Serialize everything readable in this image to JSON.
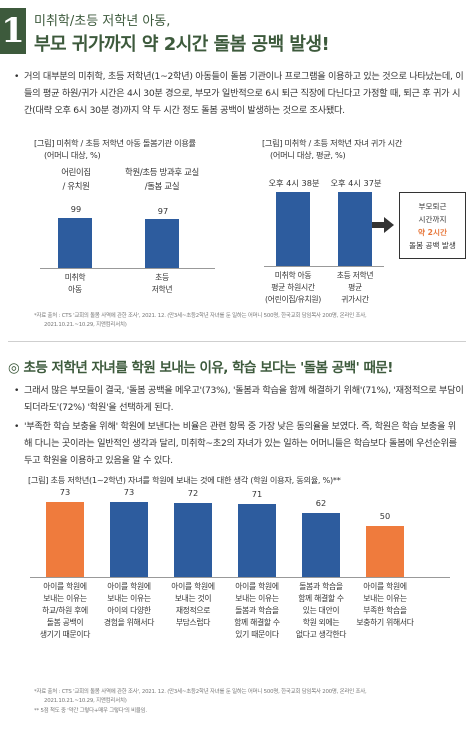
{
  "header": {
    "number": "1",
    "subtitle": "미취학/초등 저학년 아동,",
    "title": "부모 귀가까지 약 2시간 돌봄 공백 발생!"
  },
  "intro": {
    "text": "거의 대부분의 미취학, 초등 저학년(1~2학년) 아동들이 돌봄 기관이나 프로그램을 이용하고 있는 것으로 나타났는데, 이들의 평균 하원/귀가 시간은 4시 30분 경으로, 부모가 일반적으로 6시 퇴근 직장에 다닌다고 가정할 때, 퇴근 후 귀가 시간(대략 오후 6시 30분 경)까지 약 두 시간 정도 돌봄 공백이 발생하는 것으로 조사됐다."
  },
  "chart1": {
    "caption_line1": "[그림] 미취학 / 초등 저학년 아동 돌봄기관 이용률",
    "caption_line2": "(어머니 대상, %)",
    "col1_head_line1": "어린이집",
    "col1_head_line2": "/ 유치원",
    "col2_head_line1": "학원/초등 방과후 교실",
    "col2_head_line2": "/돌봄 교실",
    "chart_data": {
      "type": "bar",
      "categories": [
        "미취학 아동",
        "초등 저학년"
      ],
      "values": [
        99,
        97
      ],
      "ylim": [
        0,
        100
      ],
      "color": "#2d5c9e"
    },
    "cat1_line1": "미취학",
    "cat1_line2": "아동",
    "cat2_line1": "초등",
    "cat2_line2": "저학년",
    "val1": "99",
    "val2": "97"
  },
  "chart2": {
    "caption_line1": "[그림] 미취학 / 초등 저학년 자녀 귀가 시간",
    "caption_line2": "(어머니 대상, 평균, %)",
    "chart_data": {
      "type": "bar",
      "categories": [
        "미취학 아동 평균 하원시간",
        "초등 저학년 평균 귀가시간"
      ],
      "values": [
        "오후 4시 38분",
        "오후 4시 37분"
      ],
      "color": "#2d5c9e"
    },
    "val1": "오후 4시 38분",
    "val2": "오후 4시 37분",
    "cat1_line1": "미취학 아동",
    "cat1_line2": "평균 하원시간",
    "cat1_line3": "(어린이집/유치원)",
    "cat2_line1": "초등 저학년",
    "cat2_line2": "평균",
    "cat2_line3": "귀가시간",
    "callout_line1": "부모퇴근",
    "callout_line2": "시간까지",
    "callout_line3": "약 2시간",
    "callout_line4": "돌봄 공백 발생"
  },
  "source1": {
    "line1": "*자료 출처 : CTS '교회의 돌봄 사역에 관한 조사', 2021. 12. (만3세~초등2학년 자녀를 둔 일하는 어머니 500명, 한국교회 담임목사 200명, 온라인 조사,",
    "line2": "2021.10.21.~10.29, 지앤컴리서치)"
  },
  "section2": {
    "title": "◎ 초등 저학년 자녀를 학원 보내는 이유, 학습 보다는 '돌봄 공백' 때문!",
    "bullet1": "그래서 많은 부모들이 결국, '돌봄 공백을 메우고'(73%), '돌봄과 학습을 함께 해결하기 위해'(71%), '재정적으로 부담이 되더라도'(72%) '학원'을 선택하게 된다.",
    "bullet2": "'부족한 학습 보충을 위해' 학원에 보낸다는 비율은 관련 항목 중 가장 낮은 동의율을 보였다. 즉, 학원은 학습 보충을 위해 다니는 곳이라는 일반적인 생각과 달리, 미취학~초2의 자녀가 있는 일하는 어머니들은 학습보다 돌봄에 우선순위를 두고 학원을 이용하고 있음을 알 수 있다."
  },
  "chart3": {
    "caption": "[그림] 초등 저학년(1~2학년) 자녀를 학원에 보내는 것에 대한 생각 (학원 이용자, 동의율, %)**",
    "chart_data": {
      "type": "bar",
      "categories": [
        "아이를 학원에 보내는 이유는 하교/하원 후에 돌봄 공백이 생기기 때문이다",
        "아이를 학원에 보내는 이유는 아이의 다양한 경험을 위해서다",
        "아이를 학원에 보내는 것이 재정적으로 부담스럽다",
        "아이를 학원에 보내는 이유는 돌봄과 학습을 함께 해결할 수 있기 때문이다",
        "돌봄과 학습을 함께 해결할 수 있는 대안이 학원 외에는 없다고 생각한다",
        "아이를 학원에 보내는 이유는 부족한 학습을 보충하기 위해서다"
      ],
      "values": [
        73,
        73,
        72,
        71,
        62,
        50
      ],
      "colors": [
        "#ef7b3d",
        "#2d5c9e",
        "#2d5c9e",
        "#2d5c9e",
        "#2d5c9e",
        "#ef7b3d"
      ],
      "ylim": [
        0,
        80
      ]
    },
    "labels": [
      [
        "아이를 학원에",
        "보내는 이유는",
        "하교/하원 후에",
        "돌봄 공백이",
        "생기기 때문이다"
      ],
      [
        "아이를 학원에",
        "보내는 이유는",
        "아이의 다양한",
        "경험을 위해서다"
      ],
      [
        "아이를 학원에",
        "보내는 것이",
        "재정적으로",
        "부담스럽다"
      ],
      [
        "아이를 학원에",
        "보내는 이유는",
        "돌봄과 학습을",
        "함께 해결할 수",
        "있기 때문이다"
      ],
      [
        "돌봄과 학습을",
        "함께 해결할 수",
        "있는 대안이",
        "학원 외에는",
        "없다고 생각한다"
      ],
      [
        "아이를 학원에",
        "보내는 이유는",
        "부족한 학습을",
        "보충하기 위해서다"
      ]
    ]
  },
  "source2": {
    "line1": "*자료 출처 : CTS '교회의 돌봄 사역에 관한 조사', 2021. 12. (만3세~초등2학년 자녀를 둔 일하는 어머니 500명, 한국교회 담임목사 200명, 온라인 조사,",
    "line2": "2021.10.21.~10.29, 지앤컴리서치)",
    "line3": "** 5점 척도 중 '약간 그렇다+매우 그렇다'의 비율임."
  }
}
